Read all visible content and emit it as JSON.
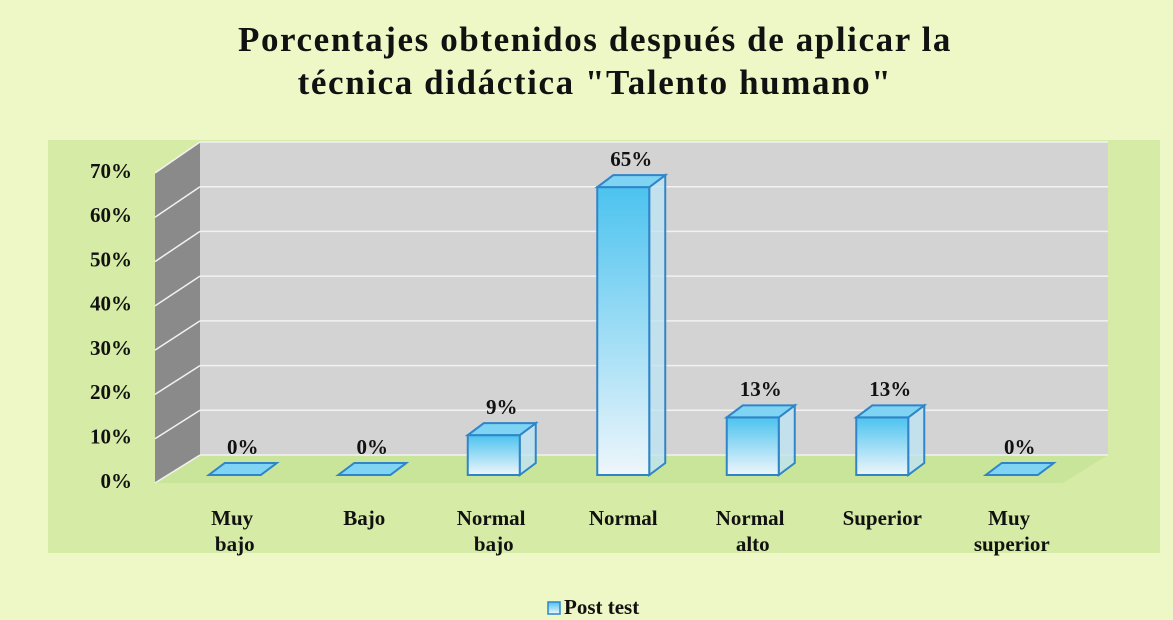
{
  "chart_data": {
    "type": "bar3d",
    "title": "Porcentajes obtenidos después de aplicar la técnica didáctica \"Talento humano\"",
    "categories": [
      "Muy bajo",
      "Bajo",
      "Normal bajo",
      "Normal",
      "Normal alto",
      "Superior",
      "Muy superior"
    ],
    "series": [
      {
        "name": "Post test",
        "color": "#5bc8f0",
        "values": [
          0,
          0,
          9,
          65,
          13,
          13,
          0
        ],
        "value_labels": [
          "0%",
          "0%",
          "9%",
          "65%",
          "13%",
          "13%",
          "0%"
        ]
      }
    ],
    "ylim": [
      0,
      70
    ],
    "yticks": [
      {
        "value": 0,
        "label": "0%"
      },
      {
        "value": 10,
        "label": "10%"
      },
      {
        "value": 20,
        "label": "20%"
      },
      {
        "value": 30,
        "label": "30%"
      },
      {
        "value": 40,
        "label": "40%"
      },
      {
        "value": 50,
        "label": "50%"
      },
      {
        "value": 60,
        "label": "60%"
      },
      {
        "value": 70,
        "label": "70%"
      }
    ],
    "grid": true,
    "legend": "bottom"
  }
}
